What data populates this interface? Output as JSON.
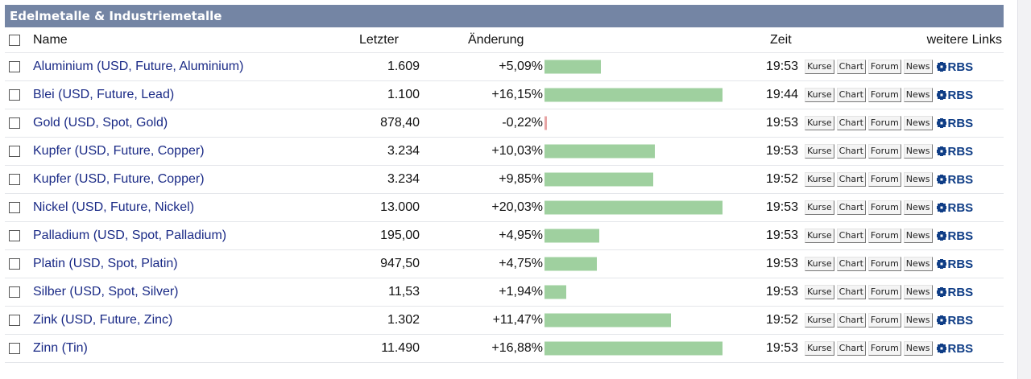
{
  "title": "Edelmetalle & Industriemetalle",
  "header": {
    "name": "Name",
    "last": "Letzter",
    "change": "Änderung",
    "time": "Zeit",
    "links": "weitere Links"
  },
  "link_labels": {
    "kurse": "Kurse",
    "chart": "Chart",
    "forum": "Forum",
    "news": "News",
    "rbs": "RBS"
  },
  "colors": {
    "title_bg": "#7485a4",
    "positive_bar": "#9fd09f",
    "negative_bar": "#e7a5a5",
    "link_text": "#1a2a86",
    "rbs_blue": "#0f3d86"
  },
  "rows": [
    {
      "name": "Aluminium (USD, Future, Aluminium)",
      "last": "1.609",
      "change": "+5,09%",
      "change_value": 5.09,
      "time": "19:53"
    },
    {
      "name": "Blei (USD, Future, Lead)",
      "last": "1.100",
      "change": "+16,15%",
      "change_value": 16.15,
      "time": "19:44"
    },
    {
      "name": "Gold (USD, Spot, Gold)",
      "last": "878,40",
      "change": "-0,22%",
      "change_value": -0.22,
      "time": "19:53"
    },
    {
      "name": "Kupfer (USD, Future, Copper)",
      "last": "3.234",
      "change": "+10,03%",
      "change_value": 10.03,
      "time": "19:53"
    },
    {
      "name": "Kupfer (USD, Future, Copper)",
      "last": "3.234",
      "change": "+9,85%",
      "change_value": 9.85,
      "time": "19:52"
    },
    {
      "name": "Nickel (USD, Future, Nickel)",
      "last": "13.000",
      "change": "+20,03%",
      "change_value": 20.03,
      "time": "19:53"
    },
    {
      "name": "Palladium (USD, Spot, Palladium)",
      "last": "195,00",
      "change": "+4,95%",
      "change_value": 4.95,
      "time": "19:53"
    },
    {
      "name": "Platin (USD, Spot, Platin)",
      "last": "947,50",
      "change": "+4,75%",
      "change_value": 4.75,
      "time": "19:53"
    },
    {
      "name": "Silber (USD, Spot, Silver)",
      "last": "11,53",
      "change": "+1,94%",
      "change_value": 1.94,
      "time": "19:53"
    },
    {
      "name": "Zink (USD, Future, Zinc)",
      "last": "1.302",
      "change": "+11,47%",
      "change_value": 11.47,
      "time": "19:52"
    },
    {
      "name": "Zinn (Tin)",
      "last": "11.490",
      "change": "+16,88%",
      "change_value": 16.88,
      "time": "19:53"
    }
  ]
}
